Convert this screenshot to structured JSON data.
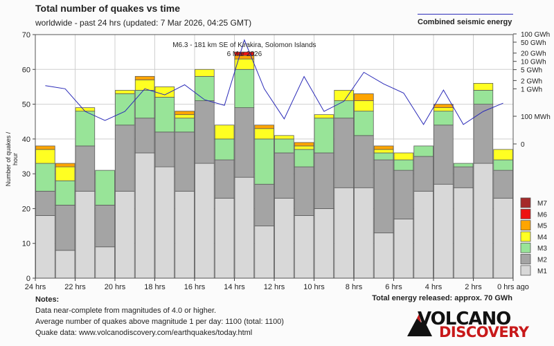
{
  "header": {
    "title": "Total number of quakes vs time",
    "subtitle": "worldwide - past 24 hrs (updated: 7 Mar 2026, 04:25 GMT)",
    "energy_legend": "Combined seismic energy"
  },
  "notes": {
    "heading": "Notes:",
    "line1": "Data near-complete from magnitudes of 4.0 or higher.",
    "line2": "Average number of quakes above magnitude 1 per day: 1100 (total: 1100)",
    "line3": "Quake data: www.volcanodiscovery.com/earthquakes/today.html"
  },
  "total_energy": "Total energy released: approx. 70 GWh",
  "logo": {
    "word1": "VOLCANO",
    "word2": "DISCOVERY"
  },
  "colors": {
    "M1": "#d8d8d8",
    "M2": "#a4a4a4",
    "M3": "#98e498",
    "M4": "#ffff22",
    "M5": "#ffa500",
    "M6": "#ee1111",
    "M7": "#a52a2a",
    "energy": "#2a2ab8"
  },
  "chart_data": {
    "type": "bar",
    "stacked": true,
    "title": "Total number of quakes vs time",
    "ylabel": "Number of quakes / hour",
    "xlabel": "",
    "ylim": [
      0,
      70
    ],
    "yticks": [
      0,
      10,
      20,
      30,
      40,
      50,
      60,
      70
    ],
    "x_tick_labels": [
      "24 hrs",
      "22 hrs",
      "20 hrs",
      "18 hrs",
      "16 hrs",
      "14 hrs",
      "12 hrs",
      "10 hrs",
      "8 hrs",
      "6 hrs",
      "4 hrs",
      "2 hrs",
      "0 hrs ago"
    ],
    "legend": [
      "M7",
      "M6",
      "M5",
      "M4",
      "M3",
      "M2",
      "M1"
    ],
    "series": [
      {
        "name": "M1",
        "values": [
          18,
          8,
          25,
          9,
          25,
          36,
          32,
          25,
          33,
          23,
          29,
          15,
          23,
          18,
          20,
          26,
          26,
          13,
          17,
          25,
          27,
          26,
          33,
          23
        ]
      },
      {
        "name": "M2",
        "values": [
          7,
          13,
          13,
          12,
          19,
          10,
          10,
          17,
          18,
          11,
          20,
          12,
          13,
          14,
          16,
          20,
          15,
          21,
          14,
          10,
          17,
          6,
          17,
          8
        ]
      },
      {
        "name": "M3",
        "values": [
          8,
          7,
          10,
          10,
          9,
          8,
          10,
          4,
          7,
          6,
          11,
          13,
          4,
          5,
          10,
          5,
          7,
          2,
          3,
          3,
          4,
          1,
          4,
          3
        ]
      },
      {
        "name": "M4",
        "values": [
          4,
          4,
          1,
          0,
          1,
          3,
          3,
          1,
          2,
          4,
          3,
          3,
          1,
          1,
          1,
          3,
          3,
          1,
          2,
          0,
          1,
          0,
          2,
          3
        ]
      },
      {
        "name": "M5",
        "values": [
          1,
          1,
          0,
          0,
          0,
          1,
          0,
          1,
          0,
          0,
          1,
          1,
          0,
          1,
          0,
          0,
          2,
          1,
          0,
          0,
          1,
          0,
          0,
          0
        ]
      },
      {
        "name": "M6",
        "values": [
          0,
          0,
          0,
          0,
          0,
          0,
          0,
          0,
          0,
          0,
          1,
          0,
          0,
          0,
          0,
          0,
          0,
          0,
          0,
          0,
          0,
          0,
          0,
          0
        ]
      },
      {
        "name": "M7",
        "values": [
          0,
          0,
          0,
          0,
          0,
          0,
          0,
          0,
          0,
          0,
          0,
          0,
          0,
          0,
          0,
          0,
          0,
          0,
          0,
          0,
          0,
          0,
          0,
          0
        ]
      }
    ],
    "energy_axis": {
      "labels": [
        "100 GWh",
        "50 GWh",
        "20 GWh",
        "10 GWh",
        "5 GWh",
        "2 GWh",
        "1 GWh",
        "100 MWh",
        "0"
      ],
      "values_gwh": [
        100,
        50,
        20,
        10,
        5,
        2,
        1,
        0.1,
        0
      ]
    },
    "energy_series": {
      "name": "Combined seismic energy",
      "unit": "GWh",
      "values": [
        1.3,
        1.0,
        0.15,
        0.07,
        0.15,
        1.0,
        0.6,
        1.4,
        0.4,
        0.25,
        60,
        1.0,
        0.08,
        2.8,
        0.15,
        0.35,
        4.0,
        1.5,
        0.7,
        0.05,
        0.9,
        0.05,
        0.15,
        0.3
      ]
    },
    "annotation": {
      "text": "M6.3 - 181 km SE of Kirakira, Solomon Islands",
      "date": "6 Mar 2026",
      "bar_index": 10
    }
  }
}
